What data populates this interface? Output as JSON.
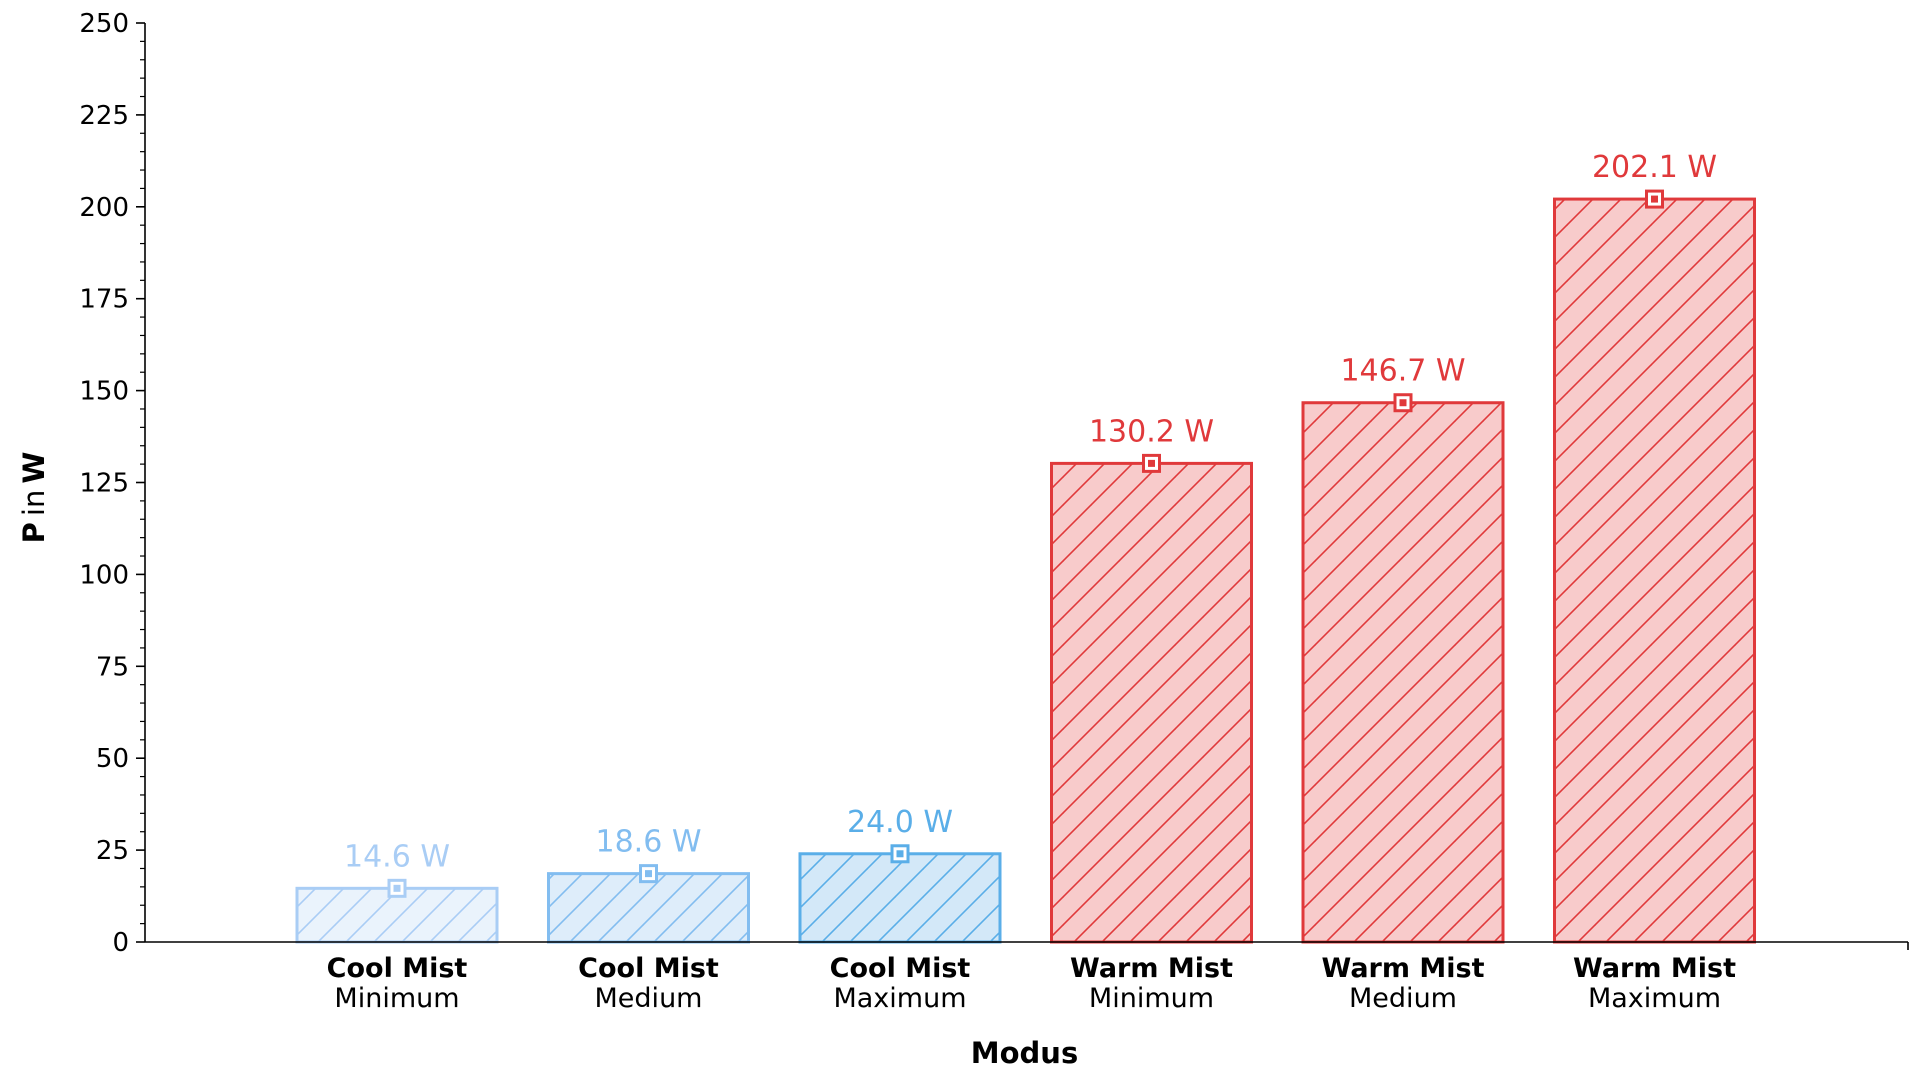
{
  "chart_data": {
    "type": "bar",
    "categories": [
      {
        "mode": "Cool Mist",
        "level": "Minimum"
      },
      {
        "mode": "Cool Mist",
        "level": "Medium"
      },
      {
        "mode": "Cool Mist",
        "level": "Maximum"
      },
      {
        "mode": "Warm Mist",
        "level": "Minimum"
      },
      {
        "mode": "Warm Mist",
        "level": "Medium"
      },
      {
        "mode": "Warm Mist",
        "level": "Maximum"
      }
    ],
    "values": [
      14.6,
      18.6,
      24.0,
      130.2,
      146.7,
      202.1
    ],
    "value_labels": [
      "14.6 W",
      "18.6 W",
      "24.0 W",
      "130.2 W",
      "146.7 W",
      "202.1 W"
    ],
    "xlabel": "Modus",
    "ylabel": {
      "p": "P",
      "in": "in",
      "w": "W"
    },
    "ylim": [
      0,
      250
    ],
    "yticks": [
      0,
      25,
      50,
      75,
      100,
      125,
      150,
      175,
      200,
      225,
      250
    ],
    "grid": false,
    "legend": "none",
    "colors": {
      "edge": [
        "#a9cdf5",
        "#82bdf0",
        "#5aaee8",
        "#e0393b",
        "#e0393b",
        "#e0393b"
      ],
      "fill": [
        "#eaf3fc",
        "#deedfa",
        "#d3e8f8",
        "#f8cbcb",
        "#f8cbcb",
        "#f8cbcb"
      ],
      "text": [
        "#a9cdf5",
        "#82bdf0",
        "#5aaee8",
        "#e0393b",
        "#e0393b",
        "#e0393b"
      ]
    }
  }
}
